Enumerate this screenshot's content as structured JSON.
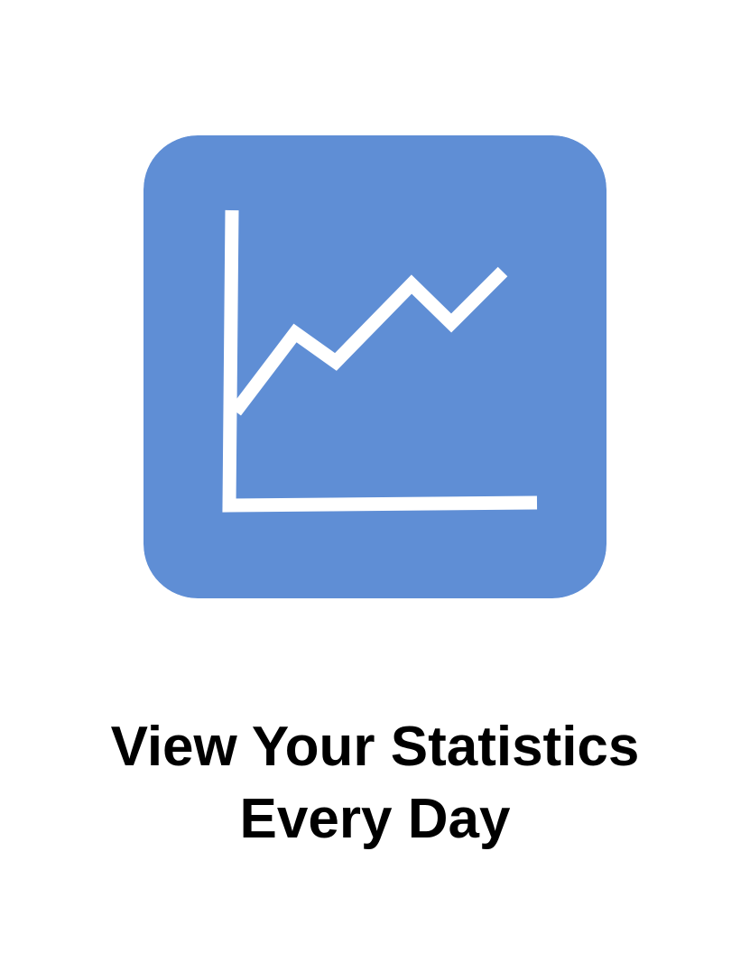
{
  "colors": {
    "icon_background": "#5f8ed5",
    "icon_foreground": "#ffffff",
    "page_background": "#ffffff",
    "text": "#000000"
  },
  "icon": {
    "name": "line-chart-icon",
    "trend_shape": "zigzag-up"
  },
  "headline": {
    "line1": "View Your Statistics",
    "line2": "Every Day"
  }
}
